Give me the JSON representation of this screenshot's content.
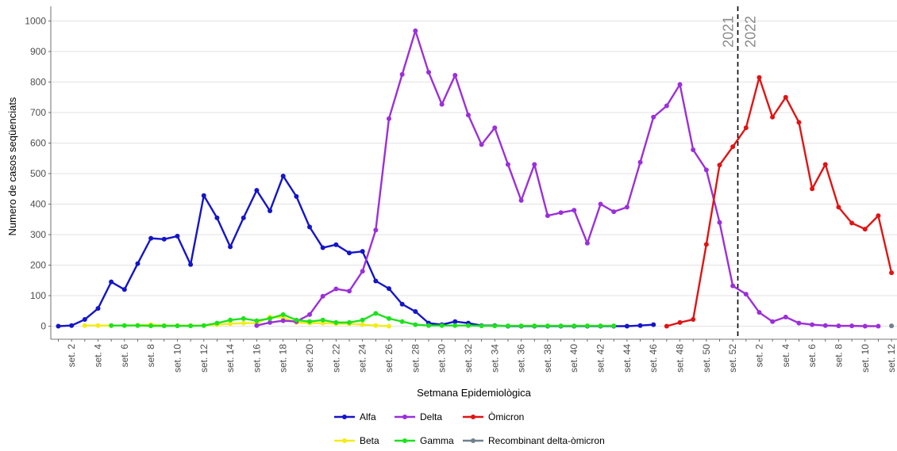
{
  "chart_data": {
    "type": "line",
    "xlabel": "Setmana Epidemiològica",
    "ylabel": "Numero de casos seqüenciats",
    "ylim": [
      0,
      1000
    ],
    "yticks": [
      0,
      100,
      200,
      300,
      400,
      500,
      600,
      700,
      800,
      900,
      1000
    ],
    "grid": true,
    "legend_position": "bottom",
    "x_categories": [
      "set. 1",
      "set. 2",
      "set. 3",
      "set. 4",
      "set. 5",
      "set. 6",
      "set. 7",
      "set. 8",
      "set. 9",
      "set. 10",
      "set. 11",
      "set. 12",
      "set. 13",
      "set. 14",
      "set. 15",
      "set. 16",
      "set. 17",
      "set. 18",
      "set. 19",
      "set. 20",
      "set. 21",
      "set. 22",
      "set. 23",
      "set. 24",
      "set. 25",
      "set. 26",
      "set. 27",
      "set. 28",
      "set. 29",
      "set. 30",
      "set. 31",
      "set. 32",
      "set. 33",
      "set. 34",
      "set. 35",
      "set. 36",
      "set. 37",
      "set. 38",
      "set. 39",
      "set. 40",
      "set. 41",
      "set. 42",
      "set. 43",
      "set. 44",
      "set. 45",
      "set. 46",
      "set. 47",
      "set. 48",
      "set. 49",
      "set. 50",
      "set. 51",
      "set. 52",
      "set. 1",
      "set. 2",
      "set. 3",
      "set. 4",
      "set. 5",
      "set. 6",
      "set. 7",
      "set. 8",
      "set. 9",
      "set. 10",
      "set. 11",
      "set. 12"
    ],
    "x_tick_labels": [
      "set. 2",
      "set. 4",
      "set. 6",
      "set. 8",
      "set. 10",
      "set. 12",
      "set. 14",
      "set. 16",
      "set. 18",
      "set. 20",
      "set. 22",
      "set. 24",
      "set. 26",
      "set. 28",
      "set. 30",
      "set. 32",
      "set. 34",
      "set. 36",
      "set. 38",
      "set. 40",
      "set. 42",
      "set. 44",
      "set. 46",
      "set. 48",
      "set. 50",
      "set. 52",
      "set. 2",
      "set. 4",
      "set. 6",
      "set. 8",
      "set. 10",
      "set. 12"
    ],
    "year_divider": {
      "after": "set. 52",
      "left_label": "2021",
      "right_label": "2022"
    },
    "series": [
      {
        "name": "Alfa",
        "color": "#1515c8",
        "points": [
          [
            1,
            0
          ],
          [
            2,
            2
          ],
          [
            3,
            22
          ],
          [
            4,
            58
          ],
          [
            5,
            145
          ],
          [
            6,
            120
          ],
          [
            7,
            205
          ],
          [
            8,
            288
          ],
          [
            9,
            285
          ],
          [
            10,
            295
          ],
          [
            11,
            202
          ],
          [
            12,
            428
          ],
          [
            13,
            355
          ],
          [
            14,
            260
          ],
          [
            15,
            355
          ],
          [
            16,
            445
          ],
          [
            17,
            378
          ],
          [
            18,
            492
          ],
          [
            19,
            425
          ],
          [
            20,
            325
          ],
          [
            21,
            257
          ],
          [
            22,
            267
          ],
          [
            23,
            240
          ],
          [
            24,
            245
          ],
          [
            25,
            148
          ],
          [
            26,
            123
          ],
          [
            27,
            72
          ],
          [
            28,
            48
          ],
          [
            29,
            10
          ],
          [
            30,
            5
          ],
          [
            31,
            15
          ],
          [
            32,
            10
          ],
          [
            33,
            2
          ],
          [
            34,
            2
          ],
          [
            35,
            0
          ],
          [
            36,
            0
          ],
          [
            37,
            0
          ],
          [
            38,
            0
          ],
          [
            39,
            0
          ],
          [
            40,
            0
          ],
          [
            41,
            0
          ],
          [
            42,
            0
          ],
          [
            43,
            0
          ],
          [
            44,
            0
          ],
          [
            45,
            2
          ],
          [
            46,
            5
          ]
        ]
      },
      {
        "name": "Beta",
        "color": "#f2ec18",
        "points": [
          [
            3,
            2
          ],
          [
            4,
            2
          ],
          [
            5,
            2
          ],
          [
            6,
            2
          ],
          [
            7,
            3
          ],
          [
            8,
            5
          ],
          [
            9,
            2
          ],
          [
            10,
            2
          ],
          [
            11,
            2
          ],
          [
            12,
            2
          ],
          [
            13,
            5
          ],
          [
            14,
            8
          ],
          [
            15,
            10
          ],
          [
            16,
            10
          ],
          [
            17,
            30
          ],
          [
            18,
            28
          ],
          [
            19,
            12
          ],
          [
            20,
            10
          ],
          [
            21,
            10
          ],
          [
            22,
            8
          ],
          [
            23,
            8
          ],
          [
            24,
            5
          ],
          [
            25,
            2
          ],
          [
            26,
            0
          ]
        ]
      },
      {
        "name": "Delta",
        "color": "#9b30d9",
        "points": [
          [
            16,
            2
          ],
          [
            17,
            12
          ],
          [
            18,
            18
          ],
          [
            19,
            15
          ],
          [
            20,
            38
          ],
          [
            21,
            98
          ],
          [
            22,
            122
          ],
          [
            23,
            115
          ],
          [
            24,
            180
          ],
          [
            25,
            315
          ],
          [
            26,
            680
          ],
          [
            27,
            825
          ],
          [
            28,
            968
          ],
          [
            29,
            832
          ],
          [
            30,
            727
          ],
          [
            31,
            822
          ],
          [
            32,
            692
          ],
          [
            33,
            595
          ],
          [
            34,
            650
          ],
          [
            35,
            530
          ],
          [
            36,
            412
          ],
          [
            37,
            530
          ],
          [
            38,
            362
          ],
          [
            39,
            372
          ],
          [
            40,
            380
          ],
          [
            41,
            272
          ],
          [
            42,
            400
          ],
          [
            43,
            375
          ],
          [
            44,
            390
          ],
          [
            45,
            537
          ],
          [
            46,
            685
          ],
          [
            47,
            722
          ],
          [
            48,
            792
          ],
          [
            49,
            578
          ],
          [
            50,
            512
          ],
          [
            51,
            340
          ],
          [
            52,
            132
          ],
          [
            53,
            105
          ],
          [
            54,
            45
          ],
          [
            55,
            15
          ],
          [
            56,
            30
          ],
          [
            57,
            10
          ],
          [
            58,
            5
          ],
          [
            59,
            2
          ],
          [
            60,
            1
          ],
          [
            61,
            1
          ],
          [
            62,
            0
          ],
          [
            63,
            0
          ]
        ]
      },
      {
        "name": "Gamma",
        "color": "#1ee11e",
        "points": [
          [
            5,
            2
          ],
          [
            6,
            2
          ],
          [
            7,
            2
          ],
          [
            8,
            1
          ],
          [
            9,
            1
          ],
          [
            10,
            1
          ],
          [
            11,
            1
          ],
          [
            12,
            2
          ],
          [
            13,
            10
          ],
          [
            14,
            20
          ],
          [
            15,
            25
          ],
          [
            16,
            18
          ],
          [
            17,
            25
          ],
          [
            18,
            38
          ],
          [
            19,
            20
          ],
          [
            20,
            15
          ],
          [
            21,
            20
          ],
          [
            22,
            12
          ],
          [
            23,
            12
          ],
          [
            24,
            20
          ],
          [
            25,
            42
          ],
          [
            26,
            25
          ],
          [
            27,
            15
          ],
          [
            28,
            5
          ],
          [
            29,
            2
          ],
          [
            30,
            2
          ],
          [
            31,
            2
          ],
          [
            32,
            2
          ],
          [
            33,
            1
          ],
          [
            34,
            1
          ],
          [
            35,
            1
          ],
          [
            36,
            1
          ],
          [
            37,
            1
          ],
          [
            38,
            1
          ],
          [
            39,
            1
          ],
          [
            40,
            1
          ],
          [
            41,
            1
          ],
          [
            42,
            1
          ],
          [
            43,
            1
          ]
        ]
      },
      {
        "name": "Òmicron",
        "color": "#e01414",
        "points": [
          [
            47,
            0
          ],
          [
            48,
            12
          ],
          [
            49,
            22
          ],
          [
            50,
            268
          ],
          [
            51,
            528
          ],
          [
            52,
            588
          ],
          [
            53,
            650
          ],
          [
            54,
            815
          ],
          [
            55,
            685
          ],
          [
            56,
            750
          ],
          [
            57,
            668
          ],
          [
            58,
            450
          ],
          [
            59,
            530
          ],
          [
            60,
            390
          ],
          [
            61,
            338
          ],
          [
            62,
            318
          ],
          [
            63,
            362
          ],
          [
            64,
            175
          ]
        ]
      },
      {
        "name": "Recombinant delta-òmicron",
        "color": "#708090",
        "points": [
          [
            64,
            1
          ]
        ]
      }
    ]
  }
}
